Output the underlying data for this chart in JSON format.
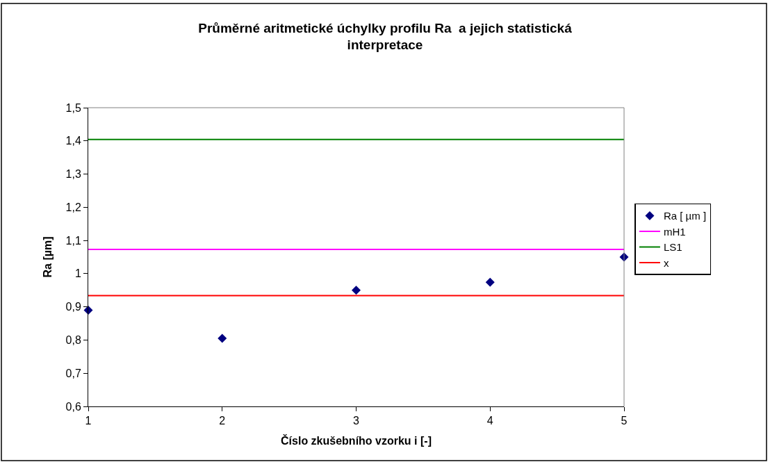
{
  "chart_data": {
    "type": "scatter",
    "title": "Průměrné aritmetické úchylky profilu Ra  a jejich statistická interpretace",
    "xlabel": "Číslo zkušebního vzorku i [-]",
    "ylabel": "Ra [µm]",
    "x": [
      1,
      2,
      3,
      4,
      5
    ],
    "series": [
      {
        "name": "Ra [ µm ]",
        "color": "#000080",
        "values": [
          0.89,
          0.805,
          0.95,
          0.974,
          1.05
        ]
      }
    ],
    "ref_lines": [
      {
        "axis": "y",
        "value": 1.073,
        "label": "mH1",
        "color": "#ff00ff"
      },
      {
        "axis": "y",
        "value": 1.404,
        "label": "LS1",
        "color": "#008000"
      },
      {
        "axis": "y",
        "value": 0.934,
        "label": "x",
        "color": "#ff0000"
      }
    ],
    "marker": "diamond",
    "xlim": [
      1,
      5
    ],
    "xticks": [
      1,
      2,
      3,
      4,
      5
    ],
    "ylim": [
      0.6,
      1.5
    ],
    "yticks": [
      {
        "value": 0.6,
        "label": "0,6"
      },
      {
        "value": 0.7,
        "label": "0,7"
      },
      {
        "value": 0.8,
        "label": "0,8"
      },
      {
        "value": 0.9,
        "label": "0,9"
      },
      1,
      {
        "value": 1.1,
        "label": "1,1"
      },
      {
        "value": 1.2,
        "label": "1,2"
      },
      {
        "value": 1.3,
        "label": "1,3"
      },
      {
        "value": 1.4,
        "label": "1,4"
      },
      {
        "value": 1.5,
        "label": "1,5"
      }
    ],
    "legend": "right"
  }
}
